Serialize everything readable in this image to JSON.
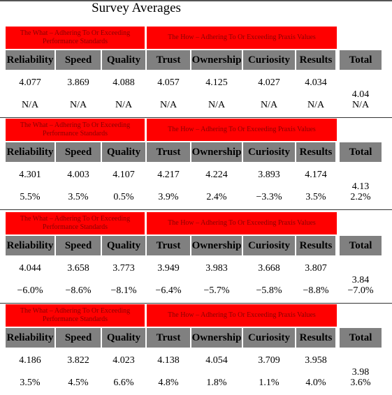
{
  "header": {
    "title": "Survey Averages"
  },
  "blocks": [
    {
      "what": "The What – Adhering To Or Exceeding Performance Standards",
      "how": "The How – Adhering To Or Exceeding Praxis Values",
      "headers": [
        "Reliability",
        "Speed",
        "Quality",
        "Trust",
        "Ownership",
        "Curiosity",
        "Results",
        "Total"
      ],
      "values": [
        "4.077",
        "3.869",
        "4.088",
        "4.057",
        "4.125",
        "4.027",
        "4.034"
      ],
      "total": "4.04",
      "changes": [
        "N/A",
        "N/A",
        "N/A",
        "N/A",
        "N/A",
        "N/A",
        "N/A",
        "N/A"
      ]
    },
    {
      "what": "The What – Adhering To Or Exceeding Performance Standards",
      "how": "The How – Adhering To Or Exceeding Praxis Values",
      "headers": [
        "Reliability",
        "Speed",
        "Quality",
        "Trust",
        "Ownership",
        "Curiosity",
        "Results",
        "Total"
      ],
      "values": [
        "4.301",
        "4.003",
        "4.107",
        "4.217",
        "4.224",
        "3.893",
        "4.174"
      ],
      "total": "4.13",
      "changes": [
        "5.5%",
        "3.5%",
        "0.5%",
        "3.9%",
        "2.4%",
        "−3.3%",
        "3.5%",
        "2.2%"
      ]
    },
    {
      "what": "The What – Adhering To Or Exceeding Performance Standards",
      "how": "The How – Adhering To Or Exceeding Praxis Values",
      "headers": [
        "Reliability",
        "Speed",
        "Quality",
        "Trust",
        "Ownership",
        "Curiosity",
        "Results",
        "Total"
      ],
      "values": [
        "4.044",
        "3.658",
        "3.773",
        "3.949",
        "3.983",
        "3.668",
        "3.807"
      ],
      "total": "3.84",
      "changes": [
        "−6.0%",
        "−8.6%",
        "−8.1%",
        "−6.4%",
        "−5.7%",
        "−5.8%",
        "−8.8%",
        "−7.0%"
      ]
    },
    {
      "what": "The What – Adhering To Or Exceeding Performance Standards",
      "how": "The How – Adhering To Or Exceeding Praxis Values",
      "headers": [
        "Reliability",
        "Speed",
        "Quality",
        "Trust",
        "Ownership",
        "Curiosity",
        "Results",
        "Total"
      ],
      "values": [
        "4.186",
        "3.822",
        "4.023",
        "4.138",
        "4.054",
        "3.709",
        "3.958"
      ],
      "total": "3.98",
      "changes": [
        "3.5%",
        "4.5%",
        "6.6%",
        "4.8%",
        "1.8%",
        "1.1%",
        "4.0%",
        "3.6%"
      ]
    }
  ]
}
